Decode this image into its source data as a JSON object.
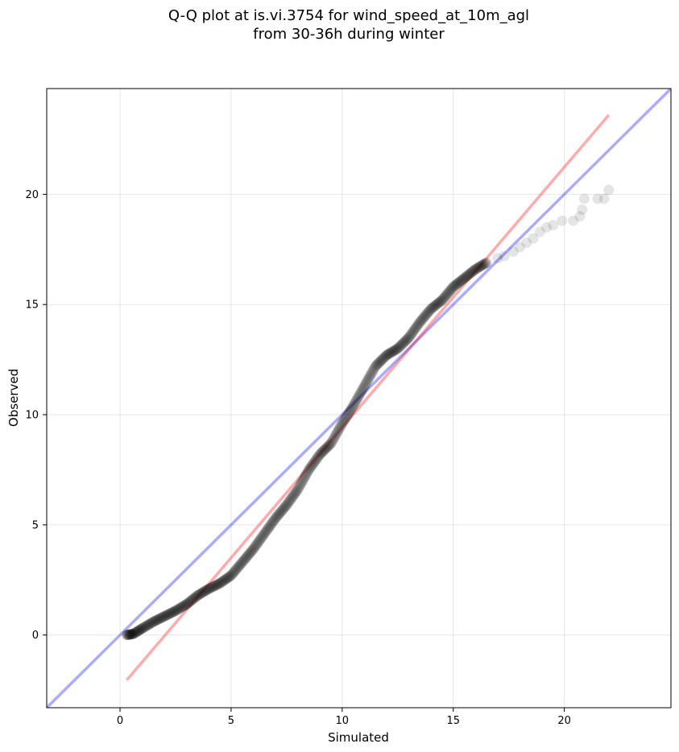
{
  "chart_data": {
    "type": "scatter",
    "title": [
      "Q-Q plot at is.vi.3754 for wind_speed_at_10m_agl",
      "from 30-36h during winter"
    ],
    "xlabel": "Simulated",
    "ylabel": "Observed",
    "xlim": [
      -3.3,
      24.8
    ],
    "ylim": [
      -3.3,
      24.8
    ],
    "xticks": [
      0,
      5,
      10,
      15,
      20
    ],
    "yticks": [
      0,
      5,
      10,
      15,
      20
    ],
    "grid": true,
    "point_color": "#000000",
    "identity_line": {
      "color": "#0000ff",
      "from": [
        -3.3,
        -3.3
      ],
      "to": [
        24.8,
        24.8
      ]
    },
    "fit_line": {
      "color": "#ff0000",
      "from": [
        0.3,
        -2.05
      ],
      "to": [
        22.0,
        23.6
      ]
    },
    "quantile_curve": [
      [
        0.3,
        0.0
      ],
      [
        0.6,
        0.05
      ],
      [
        1.0,
        0.3
      ],
      [
        1.5,
        0.6
      ],
      [
        2.0,
        0.85
      ],
      [
        2.5,
        1.1
      ],
      [
        3.0,
        1.4
      ],
      [
        3.5,
        1.8
      ],
      [
        4.0,
        2.1
      ],
      [
        4.5,
        2.35
      ],
      [
        5.0,
        2.7
      ],
      [
        5.5,
        3.3
      ],
      [
        6.0,
        3.9
      ],
      [
        6.5,
        4.6
      ],
      [
        7.0,
        5.3
      ],
      [
        7.5,
        5.9
      ],
      [
        8.0,
        6.6
      ],
      [
        8.5,
        7.5
      ],
      [
        9.0,
        8.2
      ],
      [
        9.5,
        8.7
      ],
      [
        10.0,
        9.6
      ],
      [
        10.5,
        10.4
      ],
      [
        11.0,
        11.3
      ],
      [
        11.5,
        12.2
      ],
      [
        12.0,
        12.7
      ],
      [
        12.5,
        13.0
      ],
      [
        13.0,
        13.5
      ],
      [
        13.5,
        14.2
      ],
      [
        14.0,
        14.8
      ],
      [
        14.5,
        15.2
      ],
      [
        15.0,
        15.8
      ],
      [
        15.5,
        16.2
      ],
      [
        16.0,
        16.6
      ],
      [
        16.5,
        16.9
      ]
    ],
    "tail_points": [
      [
        17.0,
        17.1
      ],
      [
        17.3,
        17.2
      ],
      [
        17.7,
        17.4
      ],
      [
        18.0,
        17.6
      ],
      [
        18.3,
        17.8
      ],
      [
        18.6,
        18.0
      ],
      [
        18.9,
        18.3
      ],
      [
        19.2,
        18.5
      ],
      [
        19.5,
        18.6
      ],
      [
        19.9,
        18.8
      ],
      [
        20.4,
        18.8
      ],
      [
        20.7,
        19.0
      ],
      [
        20.8,
        19.3
      ],
      [
        20.9,
        19.8
      ],
      [
        21.5,
        19.8
      ],
      [
        21.8,
        19.8
      ],
      [
        22.0,
        20.2
      ]
    ]
  }
}
